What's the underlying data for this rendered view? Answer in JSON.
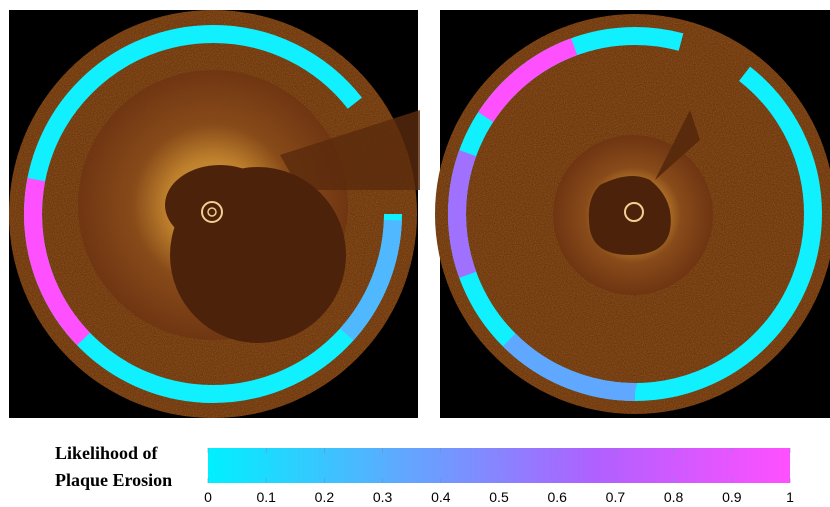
{
  "colorbar": {
    "label": [
      "Likelihood of",
      "Plaque Erosion"
    ],
    "lim": [
      0,
      1
    ],
    "ticks": [
      0,
      0.1,
      0.2,
      0.3,
      0.4,
      0.5,
      0.6,
      0.7,
      0.8,
      0.9,
      1
    ],
    "colors": [
      "#00f0ff",
      "#60a8ff",
      "#b060ff",
      "#ff50ff"
    ]
  }
}
